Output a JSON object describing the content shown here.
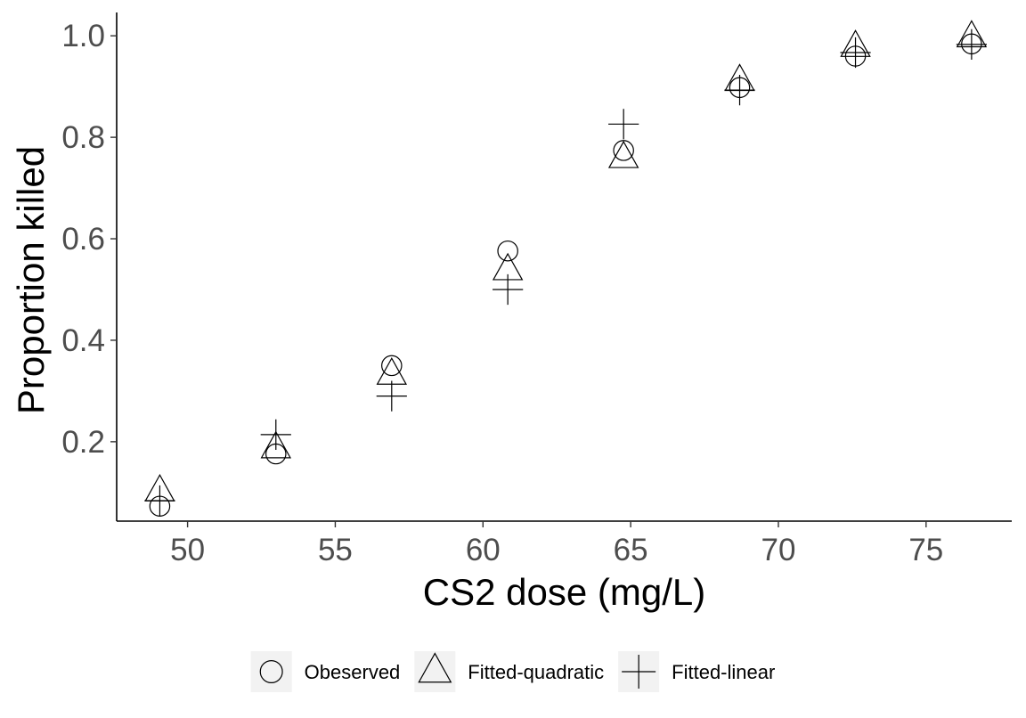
{
  "chart_data": {
    "type": "scatter",
    "title": "",
    "xlabel": "CS2 dose (mg/L)",
    "ylabel": "Proportion killed",
    "xlim": [
      47.6,
      77.9
    ],
    "ylim": [
      0.0435,
      1.046
    ],
    "x_ticks": [
      50,
      55,
      60,
      65,
      70,
      75
    ],
    "y_ticks": [
      0.2,
      0.4,
      0.6,
      0.8,
      1.0
    ],
    "x_tick_labels": [
      "50",
      "55",
      "60",
      "65",
      "70",
      "75"
    ],
    "y_tick_labels": [
      "0.2",
      "0.4",
      "0.6",
      "0.8",
      "1.0"
    ],
    "grid": false,
    "legend_position": "bottom",
    "series": [
      {
        "name": "Obeserved",
        "shape": "circle",
        "x": [
          49.06,
          52.99,
          56.91,
          60.84,
          64.76,
          68.69,
          72.61,
          76.54
        ],
        "y": [
          0.073,
          0.176,
          0.35,
          0.576,
          0.774,
          0.898,
          0.96,
          0.984
        ]
      },
      {
        "name": "Fitted-quadratic",
        "shape": "triangle",
        "x": [
          49.06,
          52.99,
          56.91,
          60.84,
          64.76,
          68.69,
          72.61,
          76.54
        ],
        "y": [
          0.102,
          0.187,
          0.332,
          0.538,
          0.759,
          0.911,
          0.978,
          0.997
        ]
      },
      {
        "name": "Fitted-linear",
        "shape": "plus",
        "x": [
          49.06,
          52.99,
          56.91,
          60.84,
          64.76,
          68.69,
          72.61,
          76.54
        ],
        "y": [
          0.084,
          0.214,
          0.29,
          0.5,
          0.826,
          0.893,
          0.967,
          0.983
        ]
      }
    ]
  }
}
